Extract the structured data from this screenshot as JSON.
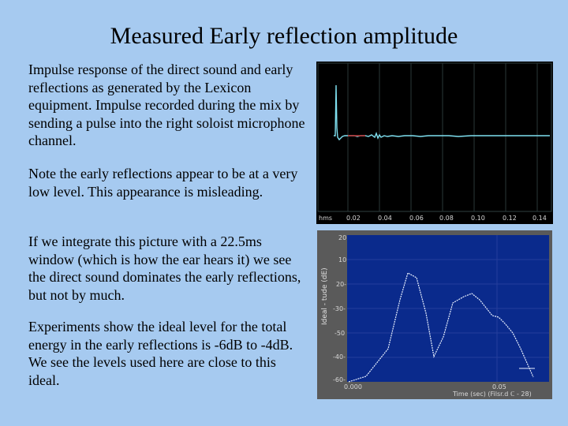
{
  "slide": {
    "title": "Measured Early reflection amplitude",
    "paragraphs": [
      "Impulse response of the direct sound and early reflections as generated by the Lexicon equipment.  Impulse recorded during the mix by sending a pulse into the right soloist microphone channel.",
      "Note the early reflections appear to be at a very low level.  This appearance is misleading.",
      "If we integrate this picture with a 22.5ms window (which is how the ear hears it) we see the direct sound dominates the early reflections, but not by much.",
      "Experiments show the ideal level for the total energy in the early reflections is -6dB to -4dB.  We see the levels used here are close to this ideal."
    ]
  },
  "colors": {
    "slide_background": "#a6caf0",
    "impulse_background": "#000000",
    "impulse_trace": "#7fe0f0",
    "impulse_marker": "#c03030",
    "integrated_background": "#0a2a8c",
    "integrated_trace": "#e8f0ff"
  },
  "impulse_plot": {
    "x_tick_labels": [
      "hms",
      "0.02",
      "0.04",
      "0.06",
      "0.08",
      "0.10",
      "0.12",
      "0.14"
    ]
  },
  "integrated_plot": {
    "y_label": "Ideal - tude (dE)",
    "y_tick_labels": [
      "20",
      "10",
      "20-",
      "-30-",
      "-50",
      "-40-",
      "-60-"
    ],
    "x_tick_labels": [
      "0.000",
      "0.05"
    ],
    "x_label": "Time (sec) (Filsr.d ℂ - 28)"
  }
}
